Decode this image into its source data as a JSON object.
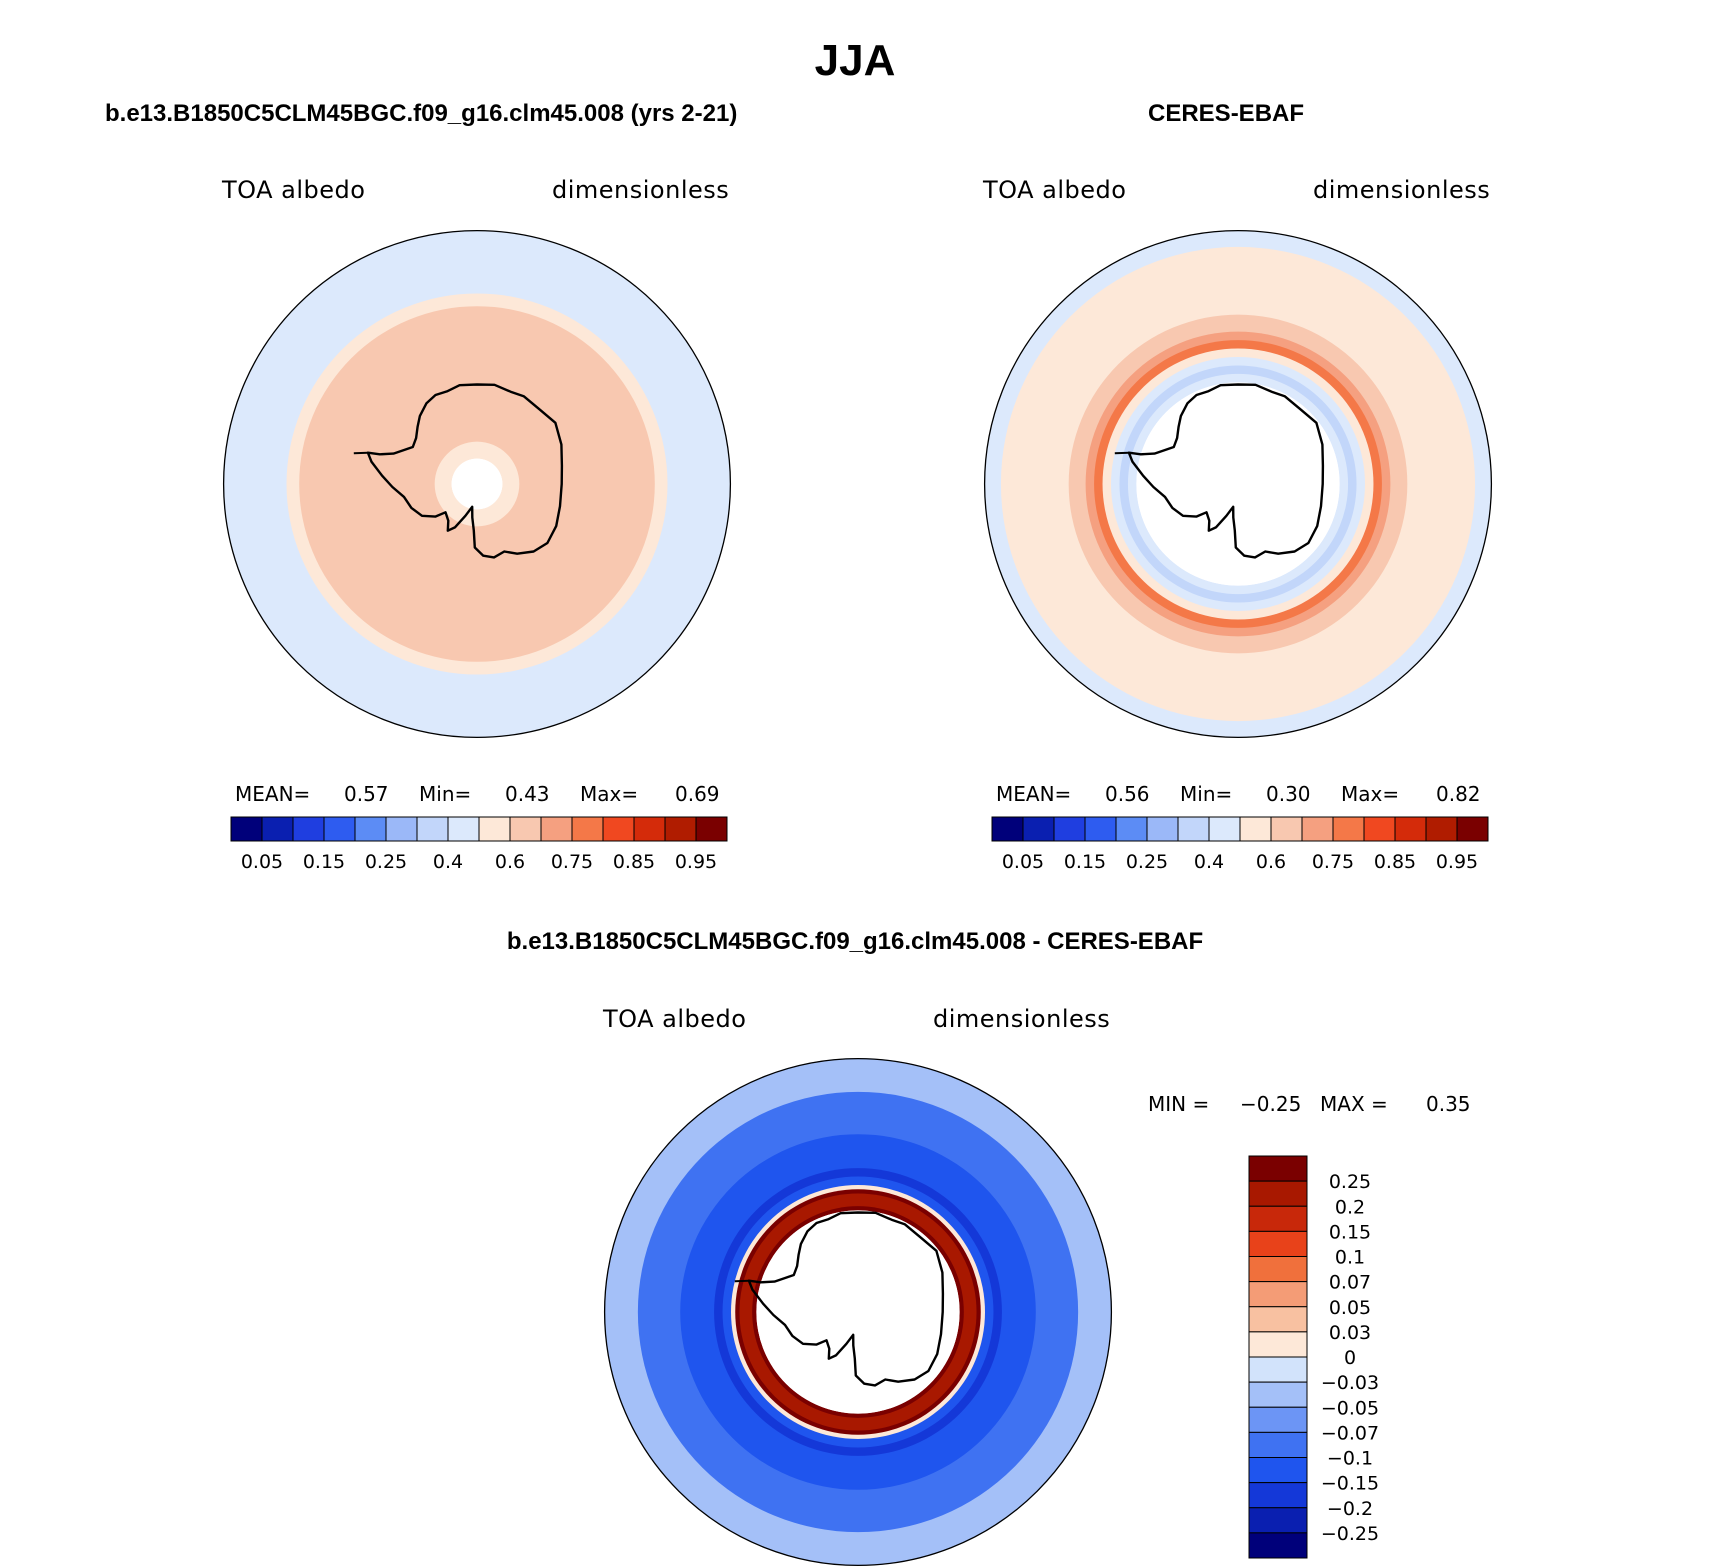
{
  "page_title": "JJA",
  "colors": {
    "abs_scale": [
      "#00007a",
      "#0a1fb0",
      "#1f3ee0",
      "#2e5cf0",
      "#5c8cf5",
      "#9bb8f8",
      "#c2d6fa",
      "#dce9fc",
      "#fde8d8",
      "#f8c8b0",
      "#f5a080",
      "#f47848",
      "#f04820",
      "#d42b0a",
      "#b01c00",
      "#7a0000"
    ],
    "diff_scale": [
      "#00007a",
      "#0a1fb0",
      "#1438d8",
      "#1f55ee",
      "#3f72f2",
      "#6c95f5",
      "#a4c0f8",
      "#d2e3fb",
      "#fde8d8",
      "#f8c1a1",
      "#f49c76",
      "#f0703c",
      "#e8421a",
      "#c8280a",
      "#a81800",
      "#7a0000"
    ]
  },
  "chart_data": [
    {
      "type": "heatmap",
      "projection": "south-polar-stereographic",
      "title": "b.e13.B1850C5CLM45BGC.f09_g16.clm45.008 (yrs 2-21)",
      "left_label": "TOA albedo",
      "right_label": "dimensionless",
      "stats": {
        "mean_label": "MEAN=",
        "mean": "0.57",
        "min_label": "Min=",
        "min": "0.43",
        "max_label": "Max=",
        "max": "0.69"
      },
      "levels": [
        0.05,
        0.1,
        0.15,
        0.2,
        0.25,
        0.3,
        0.4,
        0.5,
        0.6,
        0.7,
        0.75,
        0.8,
        0.85,
        0.9,
        0.95
      ],
      "colorbar_labels": [
        "0.05",
        "0.15",
        "0.25",
        "0.4",
        "0.6",
        "0.75",
        "0.85",
        "0.95"
      ],
      "rings": [
        {
          "from_lat": -90,
          "to_lat": -84,
          "value": null
        },
        {
          "from_lat": -84,
          "to_lat": -80,
          "value": 0.55
        },
        {
          "from_lat": -80,
          "to_lat": -48,
          "value": 0.65
        },
        {
          "from_lat": -48,
          "to_lat": -45,
          "value": 0.55
        },
        {
          "from_lat": -45,
          "to_lat": -30,
          "value": 0.45
        }
      ]
    },
    {
      "type": "heatmap",
      "projection": "south-polar-stereographic",
      "title": "CERES-EBAF",
      "left_label": "TOA albedo",
      "right_label": "dimensionless",
      "stats": {
        "mean_label": "MEAN=",
        "mean": "0.56",
        "min_label": "Min=",
        "min": "0.30",
        "max_label": "Max=",
        "max": "0.82"
      },
      "levels": [
        0.05,
        0.1,
        0.15,
        0.2,
        0.25,
        0.3,
        0.4,
        0.5,
        0.6,
        0.7,
        0.75,
        0.8,
        0.85,
        0.9,
        0.95
      ],
      "colorbar_labels": [
        "0.05",
        "0.15",
        "0.25",
        "0.4",
        "0.6",
        "0.75",
        "0.85",
        "0.95"
      ],
      "rings": [
        {
          "from_lat": -90,
          "to_lat": -66,
          "value": null
        },
        {
          "from_lat": -66,
          "to_lat": -64,
          "value": 0.45
        },
        {
          "from_lat": -64,
          "to_lat": -62,
          "value": 0.35
        },
        {
          "from_lat": -62,
          "to_lat": -60,
          "value": 0.45
        },
        {
          "from_lat": -60,
          "to_lat": -58,
          "value": 0.55
        },
        {
          "from_lat": -58,
          "to_lat": -56,
          "value": 0.78
        },
        {
          "from_lat": -56,
          "to_lat": -54,
          "value": 0.72
        },
        {
          "from_lat": -54,
          "to_lat": -50,
          "value": 0.65
        },
        {
          "from_lat": -50,
          "to_lat": -34,
          "value": 0.55
        },
        {
          "from_lat": -34,
          "to_lat": -30,
          "value": 0.45
        }
      ]
    },
    {
      "type": "heatmap",
      "projection": "south-polar-stereographic",
      "title": "b.e13.B1850C5CLM45BGC.f09_g16.clm45.008 - CERES-EBAF",
      "left_label": "TOA albedo",
      "right_label": "dimensionless",
      "stats": {
        "min_label": "MIN =",
        "min": "−0.25",
        "max_label": "MAX =",
        "max": "0.35"
      },
      "levels": [
        -0.25,
        -0.2,
        -0.15,
        -0.1,
        -0.07,
        -0.05,
        -0.03,
        0,
        0.03,
        0.05,
        0.07,
        0.1,
        0.15,
        0.2,
        0.25
      ],
      "colorbar_labels": [
        "0.25",
        "0.2",
        "0.15",
        "0.1",
        "0.07",
        "0.05",
        "0.03",
        "0",
        "−0.03",
        "−0.05",
        "−0.07",
        "−0.1",
        "−0.15",
        "−0.2",
        "−0.25"
      ],
      "rings": [
        {
          "from_lat": -90,
          "to_lat": -66,
          "value": null
        },
        {
          "from_lat": -66,
          "to_lat": -65,
          "value": 0.3
        },
        {
          "from_lat": -65,
          "to_lat": -62,
          "value": 0.22
        },
        {
          "from_lat": -62,
          "to_lat": -61,
          "value": 0.3
        },
        {
          "from_lat": -61,
          "to_lat": -60,
          "value": 0.01
        },
        {
          "from_lat": -60,
          "to_lat": -58,
          "value": -0.12
        },
        {
          "from_lat": -58,
          "to_lat": -56,
          "value": -0.2
        },
        {
          "from_lat": -56,
          "to_lat": -48,
          "value": -0.15
        },
        {
          "from_lat": -48,
          "to_lat": -38,
          "value": -0.09
        },
        {
          "from_lat": -38,
          "to_lat": -30,
          "value": -0.04
        }
      ]
    }
  ]
}
